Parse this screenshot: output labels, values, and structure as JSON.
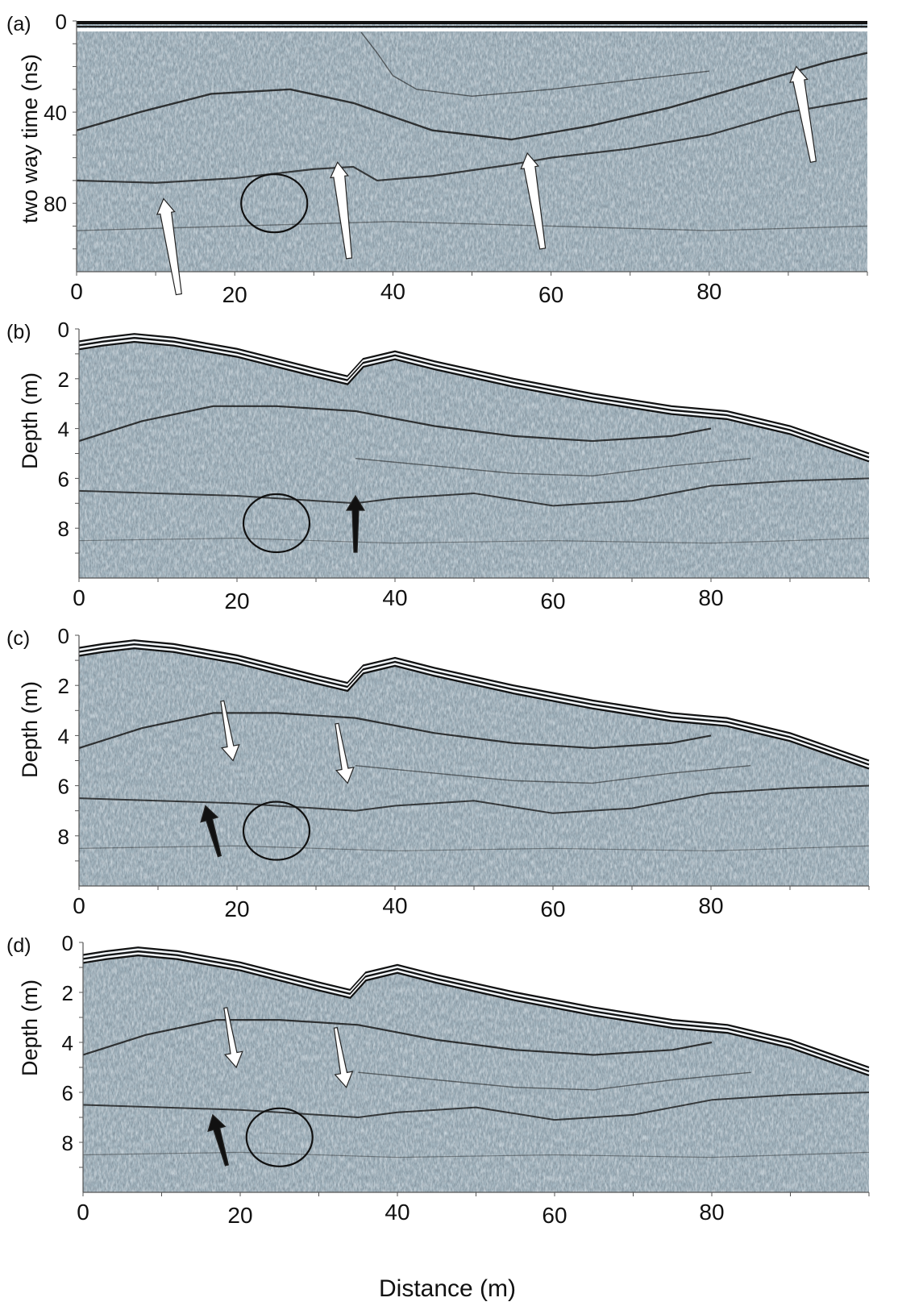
{
  "figure": {
    "xlabel": "Distance (m)",
    "x_ticks": [
      "0",
      "20",
      "40",
      "60",
      "80"
    ],
    "panels": [
      {
        "id": "a",
        "label": "(a)",
        "ylabel": "two way time (ns)",
        "y_ticks": [
          "0",
          "40",
          "80"
        ]
      },
      {
        "id": "b",
        "label": "(b)",
        "ylabel": "Depth (m)",
        "y_ticks": [
          "0",
          "2",
          "4",
          "6",
          "8"
        ]
      },
      {
        "id": "c",
        "label": "(c)",
        "ylabel": "Depth (m)",
        "y_ticks": [
          "0",
          "2",
          "4",
          "6",
          "8"
        ]
      },
      {
        "id": "d",
        "label": "(d)",
        "ylabel": "Depth (m)",
        "y_ticks": [
          "0",
          "2",
          "4",
          "6",
          "8"
        ]
      }
    ]
  },
  "chart_data": [
    {
      "type": "heatmap",
      "x_range": [
        0,
        100
      ],
      "y_range": [
        0,
        110
      ],
      "y_ticks": [
        0,
        40,
        80
      ],
      "x_ticks": [
        0,
        20,
        40,
        60,
        80
      ],
      "annotations": [
        {
          "kind": "circle",
          "x": 25,
          "y": 80
        },
        {
          "kind": "arrow",
          "color": "white",
          "tip": [
            11,
            78
          ]
        },
        {
          "kind": "arrow",
          "color": "white",
          "tip": [
            33,
            62
          ]
        },
        {
          "kind": "arrow",
          "color": "white",
          "tip": [
            57,
            58
          ]
        },
        {
          "kind": "arrow",
          "color": "white",
          "tip": [
            91,
            20
          ]
        }
      ],
      "colors": {
        "background": "#a9bcc6",
        "reflector": "#1a1a1a"
      }
    },
    {
      "type": "heatmap",
      "x_range": [
        0,
        100
      ],
      "y_range": [
        0,
        10
      ],
      "y_ticks": [
        0,
        2,
        4,
        6,
        8
      ],
      "x_ticks": [
        0,
        20,
        40,
        60,
        80
      ],
      "surface": {
        "x": [
          0,
          3,
          7,
          12,
          20,
          30,
          34,
          36,
          40,
          45,
          55,
          65,
          75,
          82,
          90,
          100
        ],
        "y": [
          0.5,
          0.35,
          0.2,
          0.35,
          0.8,
          1.6,
          1.9,
          1.2,
          0.9,
          1.3,
          2.0,
          2.6,
          3.1,
          3.3,
          3.9,
          5.0
        ]
      },
      "annotations": [
        {
          "kind": "circle",
          "x": 25,
          "y": 7.8
        },
        {
          "kind": "arrow",
          "color": "black",
          "tip": [
            35,
            6.7
          ]
        }
      ],
      "colors": {
        "background": "#a9bcc6",
        "reflector": "#1a1a1a"
      }
    },
    {
      "type": "heatmap",
      "x_range": [
        0,
        100
      ],
      "y_range": [
        0,
        10
      ],
      "y_ticks": [
        0,
        2,
        4,
        6,
        8
      ],
      "x_ticks": [
        0,
        20,
        40,
        60,
        80
      ],
      "annotations": [
        {
          "kind": "circle",
          "x": 25,
          "y": 7.8
        },
        {
          "kind": "arrow",
          "color": "white",
          "tip": [
            19.5,
            5.0
          ]
        },
        {
          "kind": "arrow",
          "color": "white",
          "tip": [
            34,
            5.9
          ]
        },
        {
          "kind": "arrow",
          "color": "black",
          "tip": [
            16,
            6.8
          ]
        }
      ],
      "colors": {
        "background": "#a9bcc6",
        "reflector": "#1a1a1a"
      }
    },
    {
      "type": "heatmap",
      "x_range": [
        0,
        100
      ],
      "y_range": [
        0,
        10
      ],
      "y_ticks": [
        0,
        2,
        4,
        6,
        8
      ],
      "x_ticks": [
        0,
        20,
        40,
        60,
        80
      ],
      "annotations": [
        {
          "kind": "circle",
          "x": 25,
          "y": 7.8
        },
        {
          "kind": "arrow",
          "color": "white",
          "tip": [
            19.5,
            5.0
          ]
        },
        {
          "kind": "arrow",
          "color": "white",
          "tip": [
            33.5,
            5.8
          ]
        },
        {
          "kind": "arrow",
          "color": "black",
          "tip": [
            16.5,
            6.9
          ]
        }
      ],
      "colors": {
        "background": "#a9bcc6",
        "reflector": "#1a1a1a"
      }
    }
  ]
}
